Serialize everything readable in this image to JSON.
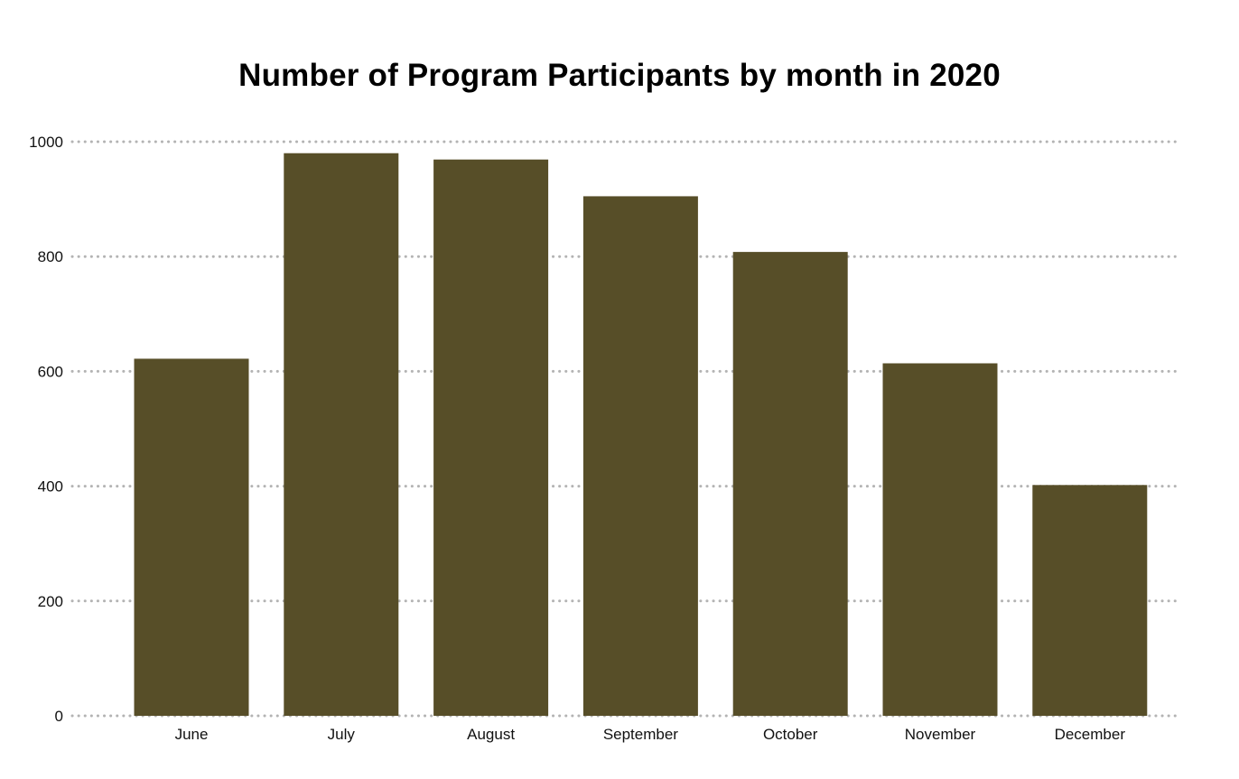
{
  "chart_data": {
    "type": "bar",
    "title": "Number of Program Participants by month in 2020",
    "categories": [
      "June",
      "July",
      "August",
      "September",
      "October",
      "November",
      "December"
    ],
    "values": [
      622,
      980,
      969,
      905,
      808,
      614,
      402
    ],
    "y_ticks": [
      "0",
      "200",
      "400",
      "600",
      "800",
      "1000"
    ],
    "ylim": [
      0,
      1000
    ],
    "grid": true,
    "grid_style": "dotted",
    "bar_color": "#574e28",
    "grid_color": "#b3b3b3"
  }
}
